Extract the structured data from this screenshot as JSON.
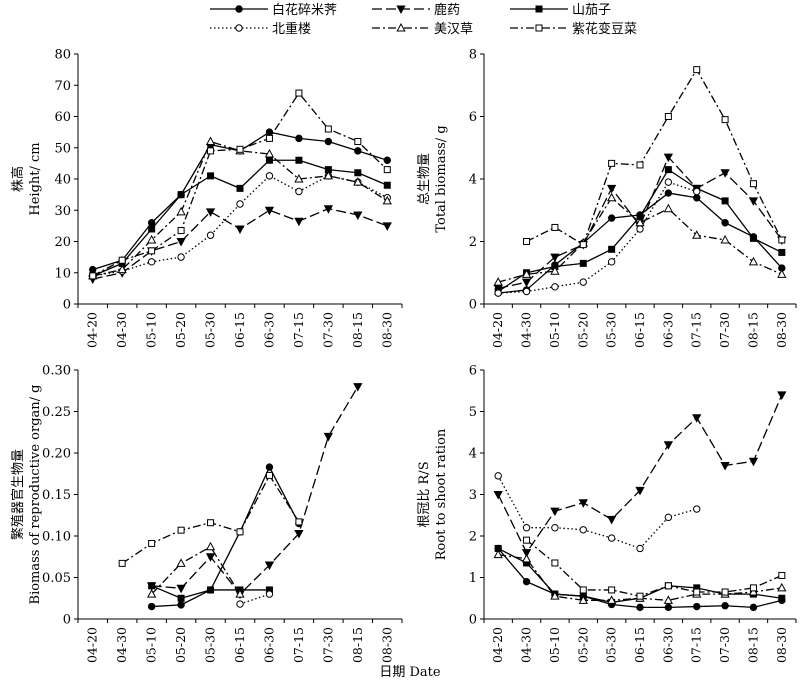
{
  "legend": [
    {
      "name": "白花碎米荠",
      "style": "solid",
      "marker": "circle-filled"
    },
    {
      "name": "鹿药",
      "style": "longdash",
      "marker": "tri-down-filled"
    },
    {
      "name": "山茄子",
      "style": "solid",
      "marker": "square-filled"
    },
    {
      "name": "北重楼",
      "style": "dotted",
      "marker": "circle-open"
    },
    {
      "name": "美汉草",
      "style": "dashdot",
      "marker": "tri-up-open"
    },
    {
      "name": "紫花变豆菜",
      "style": "dashdot",
      "marker": "square-open"
    }
  ],
  "xlabel": "日期 Date",
  "colors": {
    "line": "#000000",
    "background": "#ffffff"
  },
  "chart_data": [
    {
      "type": "line",
      "ylabel_zh": "株高",
      "ylabel_en": "Height/ cm",
      "ylim": [
        0,
        80
      ],
      "yticks": [
        "0",
        "10",
        "20",
        "30",
        "40",
        "50",
        "60",
        "70",
        "80"
      ],
      "categories": [
        "04-20",
        "04-30",
        "05-10",
        "05-20",
        "05-30",
        "06-15",
        "06-30",
        "07-15",
        "07-30",
        "08-15",
        "08-30"
      ],
      "series": [
        {
          "name": "白花碎米荠",
          "values": [
            11,
            14,
            26,
            35,
            51,
            49,
            55,
            53,
            52,
            49,
            46
          ]
        },
        {
          "name": "鹿药",
          "values": [
            8,
            10,
            17,
            20,
            29.5,
            24,
            30,
            26.5,
            30.5,
            28.5,
            25
          ]
        },
        {
          "name": "山茄子",
          "values": [
            9,
            13,
            24,
            35,
            41,
            37,
            46,
            46,
            43,
            42,
            38
          ]
        },
        {
          "name": "北重楼",
          "values": [
            9,
            10.5,
            13.5,
            15,
            22,
            32,
            41,
            36,
            41,
            39,
            34
          ]
        },
        {
          "name": "美汉草",
          "values": [
            9,
            11,
            20.5,
            29.5,
            52,
            49,
            48,
            40,
            41,
            39,
            33
          ]
        },
        {
          "name": "紫花变豆菜",
          "values": [
            9,
            14,
            17,
            23.5,
            49,
            49.5,
            53,
            67.5,
            56,
            52,
            43
          ]
        }
      ]
    },
    {
      "type": "line",
      "ylabel_zh": "总生物量",
      "ylabel_en": "Total biomass/ g",
      "ylim": [
        0,
        8
      ],
      "yticks": [
        "0",
        "2",
        "4",
        "6",
        "8"
      ],
      "categories": [
        "04-20",
        "04-30",
        "05-10",
        "05-20",
        "05-30",
        "06-15",
        "06-30",
        "07-15",
        "07-30",
        "08-15",
        "08-30"
      ],
      "series": [
        {
          "name": "白花碎米荠",
          "values": [
            0.35,
            0.45,
            1.25,
            1.95,
            2.75,
            2.85,
            3.55,
            3.4,
            2.6,
            2.15,
            1.15
          ]
        },
        {
          "name": "鹿药",
          "values": [
            0.5,
            0.7,
            1.5,
            1.9,
            3.7,
            2.5,
            4.7,
            3.7,
            4.2,
            3.3,
            2.05
          ]
        },
        {
          "name": "山茄子",
          "values": [
            0.4,
            1.0,
            1.2,
            1.3,
            1.75,
            2.8,
            4.3,
            3.7,
            3.3,
            2.1,
            1.65
          ]
        },
        {
          "name": "北重楼",
          "values": [
            0.35,
            0.4,
            0.55,
            0.7,
            1.35,
            2.4,
            3.9,
            3.6,
            null,
            null,
            null
          ]
        },
        {
          "name": "美汉草",
          "values": [
            0.7,
            0.95,
            1.05,
            1.95,
            3.4,
            2.6,
            3.05,
            2.2,
            2.05,
            1.35,
            0.95
          ]
        },
        {
          "name": "紫花变豆菜",
          "values": [
            null,
            2.0,
            2.45,
            1.9,
            4.5,
            4.45,
            6.0,
            7.5,
            5.9,
            3.85,
            2.05
          ]
        }
      ]
    },
    {
      "type": "line",
      "ylabel_zh": "繁殖器官生物量",
      "ylabel_en": "Biomass of reproductive organ/ g",
      "ylim": [
        0,
        0.3
      ],
      "yticks": [
        "0",
        "0.05",
        "0.10",
        "0.15",
        "0.20",
        "0.25",
        "0.30"
      ],
      "categories": [
        "04-20",
        "04-30",
        "05-10",
        "05-20",
        "05-30",
        "06-15",
        "06-30",
        "07-15",
        "07-30",
        "08-15",
        "08-30"
      ],
      "series": [
        {
          "name": "白花碎米荠",
          "values": [
            null,
            null,
            0.015,
            0.017,
            0.035,
            0.105,
            0.183,
            0.115,
            null,
            null,
            null
          ]
        },
        {
          "name": "鹿药",
          "values": [
            null,
            null,
            0.04,
            0.037,
            0.075,
            0.03,
            0.065,
            0.103,
            0.22,
            0.28,
            null
          ]
        },
        {
          "name": "山茄子",
          "values": [
            null,
            null,
            0.04,
            0.025,
            0.035,
            0.035,
            0.035,
            null,
            null,
            null,
            null
          ]
        },
        {
          "name": "北重楼",
          "values": [
            null,
            null,
            null,
            null,
            null,
            0.018,
            0.03,
            null,
            null,
            null,
            null
          ]
        },
        {
          "name": "美汉草",
          "values": [
            null,
            null,
            0.03,
            0.067,
            0.087,
            0.03,
            null,
            null,
            null,
            null,
            null
          ]
        },
        {
          "name": "紫花变豆菜",
          "values": [
            null,
            0.067,
            0.091,
            0.107,
            0.116,
            0.105,
            0.173,
            0.117,
            null,
            null,
            null
          ]
        }
      ]
    },
    {
      "type": "line",
      "ylabel_zh": "根冠比 R/S",
      "ylabel_en": "Root to shoot ration",
      "ylim": [
        0,
        6
      ],
      "yticks": [
        "0",
        "1",
        "2",
        "3",
        "4",
        "5",
        "6"
      ],
      "categories": [
        "04-20",
        "04-30",
        "05-10",
        "05-20",
        "05-30",
        "06-15",
        "06-30",
        "07-15",
        "07-30",
        "08-15",
        "08-30"
      ],
      "series": [
        {
          "name": "白花碎米荠",
          "values": [
            1.7,
            0.9,
            0.6,
            0.55,
            0.35,
            0.28,
            0.28,
            0.3,
            0.32,
            0.28,
            0.45
          ]
        },
        {
          "name": "鹿药",
          "values": [
            3.0,
            1.6,
            2.6,
            2.8,
            2.4,
            3.1,
            4.2,
            4.85,
            3.7,
            3.8,
            5.4
          ]
        },
        {
          "name": "山茄子",
          "values": [
            1.7,
            1.35,
            0.6,
            0.55,
            0.4,
            0.5,
            0.8,
            0.75,
            0.6,
            0.6,
            0.5
          ]
        },
        {
          "name": "北重楼",
          "values": [
            3.45,
            2.2,
            2.2,
            2.15,
            1.95,
            1.7,
            2.45,
            2.65,
            null,
            null,
            null
          ]
        },
        {
          "name": "美汉草",
          "values": [
            1.55,
            1.45,
            0.55,
            0.45,
            0.45,
            0.5,
            0.45,
            0.6,
            0.6,
            0.65,
            0.75
          ]
        },
        {
          "name": "紫花变豆菜",
          "values": [
            null,
            1.9,
            1.35,
            0.7,
            0.7,
            0.55,
            0.8,
            0.65,
            0.65,
            0.75,
            1.05
          ]
        }
      ]
    }
  ]
}
